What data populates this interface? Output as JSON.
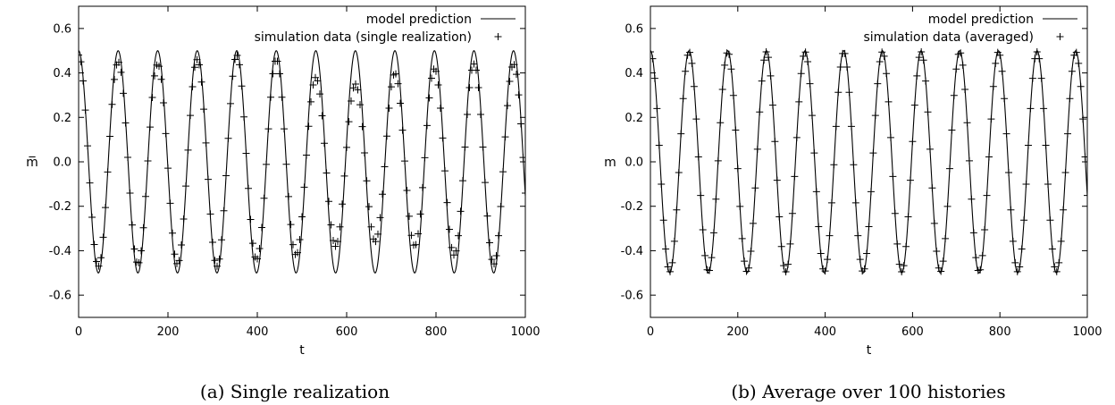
{
  "chart_data": [
    {
      "type": "line",
      "caption": "(a) Single realization",
      "xlabel": "t",
      "ylabel": "m̅",
      "xlim": [
        0,
        1000
      ],
      "ylim": [
        -0.7,
        0.7
      ],
      "x_ticks": [
        "0",
        "200",
        "400",
        "600",
        "800",
        "1000"
      ],
      "y_ticks": [
        "-0.6",
        "-0.4",
        "-0.2",
        "0.0",
        "0.2",
        "0.4",
        "0.6"
      ],
      "legend_position": "top-right",
      "series": [
        {
          "name": "model prediction",
          "style": "line",
          "model": "0.5*cos(2*pi*t/T)",
          "amplitude": 0.5,
          "period": 88.5,
          "x_range": [
            0,
            1000
          ]
        },
        {
          "name": "simulation data (single realization)",
          "style": "plus",
          "period": 88.5,
          "x_step": 5,
          "cycle_peaks": [
            0.48,
            0.45,
            0.44,
            0.46,
            0.48,
            0.46,
            0.38,
            0.35,
            0.4,
            0.42,
            0.44,
            0.44
          ],
          "cycle_troughs": [
            -0.47,
            -0.46,
            -0.46,
            -0.47,
            -0.44,
            -0.42,
            -0.38,
            -0.36,
            -0.38,
            -0.42,
            -0.46,
            -0.46
          ]
        }
      ]
    },
    {
      "type": "line",
      "caption": "(b) Average over 100 histories",
      "xlabel": "t",
      "ylabel": "m",
      "xlim": [
        0,
        1000
      ],
      "ylim": [
        -0.7,
        0.7
      ],
      "x_ticks": [
        "0",
        "200",
        "400",
        "600",
        "800",
        "1000"
      ],
      "y_ticks": [
        "-0.6",
        "-0.4",
        "-0.2",
        "0.0",
        "0.2",
        "0.4",
        "0.6"
      ],
      "legend_position": "top-right",
      "series": [
        {
          "name": "model prediction",
          "style": "line",
          "model": "0.5*cos(2*pi*t/T)",
          "amplitude": 0.5,
          "period": 88.5,
          "x_range": [
            0,
            1000
          ]
        },
        {
          "name": "simulation data (averaged)",
          "style": "plus",
          "period": 88.5,
          "x_step": 5,
          "amplitude": 0.495
        }
      ]
    }
  ]
}
